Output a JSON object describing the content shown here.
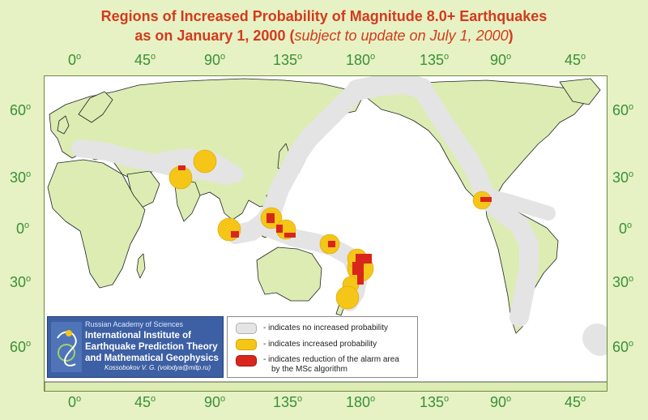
{
  "title": {
    "line1": "Regions of Increased Probability of Magnitude 8.0+ Earthquakes",
    "line2_main": "as on January 1, 2000 (",
    "line2_italic": "subject to update on July 1, 2000",
    "line2_end": ")"
  },
  "top_lon_labels": [
    "0",
    "45",
    "90",
    "135",
    "180",
    "135",
    "90",
    "45"
  ],
  "bottom_lon_labels": [
    "0",
    "45",
    "90",
    "135",
    "180",
    "135",
    "90",
    "45"
  ],
  "left_lat_labels": [
    "60",
    "30",
    "0",
    "30",
    "60"
  ],
  "right_lat_labels": [
    "60",
    "30",
    "0",
    "30",
    "60"
  ],
  "degree_symbol": "o",
  "institute": {
    "academy": "Russian  Academy of Sciences",
    "line1": "International Institute of",
    "line2": "Earthquake Prediction Theory",
    "line3": "and Mathematical Geophysics",
    "author": "Kossobokov V. G. (volodya@mitp.ru)"
  },
  "legend": {
    "items": [
      {
        "label": "- indicates no increased probability",
        "color": "#e4e4e4"
      },
      {
        "label": "- indicates increased probability",
        "color": "#f5c518"
      },
      {
        "label": "- indicates reduction of the alarm area",
        "label2": "by the MSc algorithm",
        "color": "#d9261c"
      }
    ]
  },
  "colors": {
    "background": "#e6f2c3",
    "ocean": "#ffffff",
    "no_increase": "#e4e4e4",
    "increased": "#f5c518",
    "reduction": "#d9261c",
    "title": "#d43a1e",
    "labels": "#3a8f3a"
  },
  "map_features": {
    "increased_regions": [
      "Iran",
      "Himalaya",
      "Sumatra",
      "Philippines",
      "Borneo",
      "Solomon Islands",
      "Tonga",
      "New Zealand",
      "Mexico"
    ],
    "reduction_regions": [
      "Pakistan",
      "Sumatra",
      "Philippines",
      "Sulawesi",
      "New Guinea",
      "Solomon Islands",
      "Fiji",
      "Tonga",
      "Kermadec",
      "Mexico"
    ]
  }
}
